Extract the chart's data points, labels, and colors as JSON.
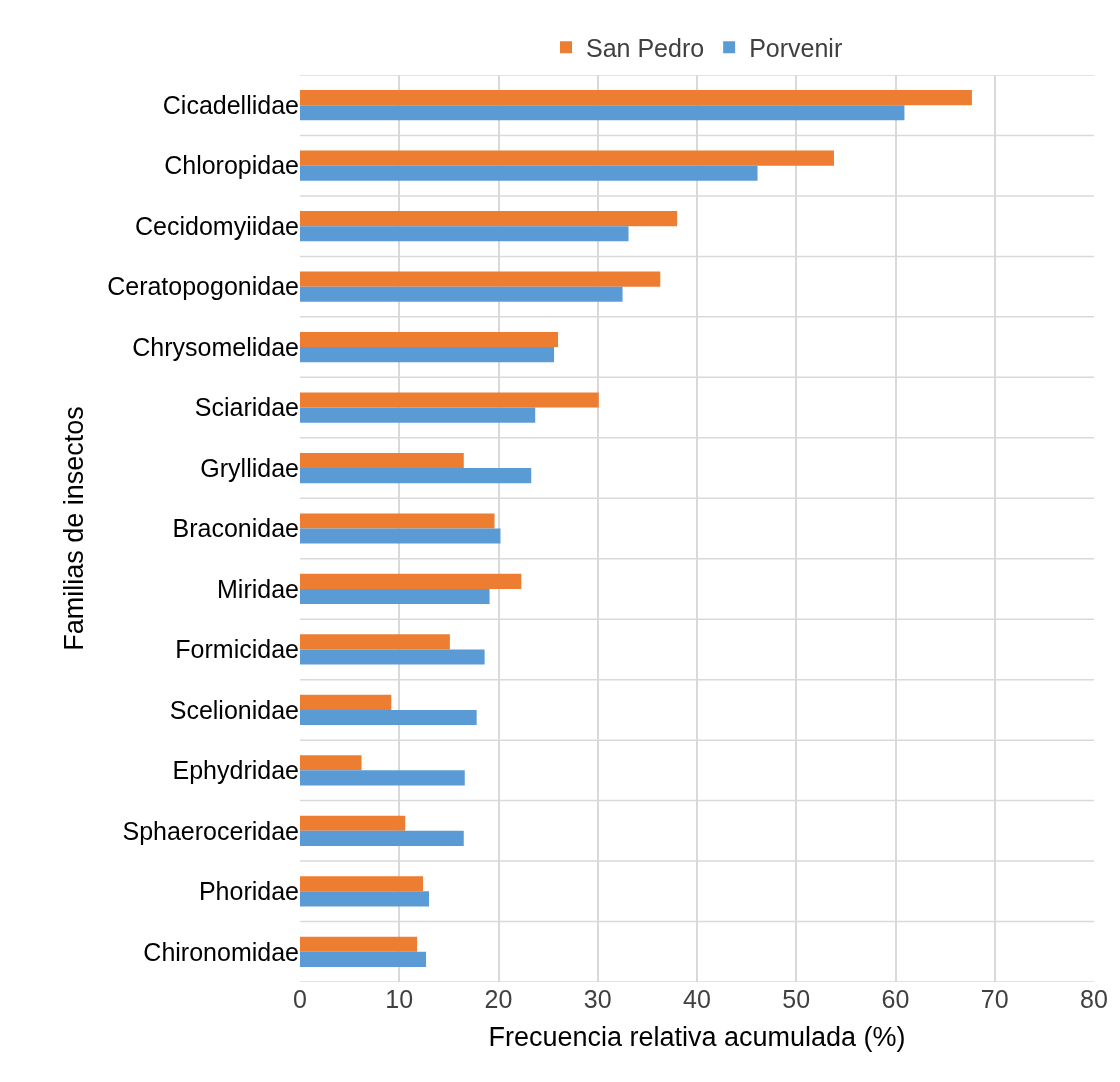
{
  "chart_data": {
    "type": "bar",
    "orientation": "horizontal",
    "xlabel": "Frecuencia relativa acumulada (%)",
    "ylabel": "Familias de insectos",
    "categories": [
      "Cicadellidae",
      "Chloropidae",
      "Cecidomyiidae",
      "Ceratopogonidae",
      "Chrysomelidae",
      "Sciaridae",
      "Gryllidae",
      "Braconidae",
      "Miridae",
      "Formicidae",
      "Scelionidae",
      "Ephydridae",
      "Sphaeroceridae",
      "Phoridae",
      "Chironomidae"
    ],
    "series": [
      {
        "name": "San Pedro",
        "color": "#ed7d31",
        "values": [
          67.7,
          53.8,
          38.0,
          36.3,
          26.0,
          30.1,
          16.5,
          19.6,
          22.3,
          15.1,
          9.2,
          6.2,
          10.6,
          12.4,
          11.8
        ]
      },
      {
        "name": "Porvenir",
        "color": "#5b9bd5",
        "values": [
          60.9,
          46.1,
          33.1,
          32.5,
          25.6,
          23.7,
          23.3,
          20.2,
          19.1,
          18.6,
          17.8,
          16.6,
          16.5,
          13.0,
          12.7
        ]
      }
    ],
    "xlim": [
      0,
      80
    ],
    "xticks": [
      0,
      10,
      20,
      30,
      40,
      50,
      60,
      70,
      80
    ],
    "grid": true,
    "legend": "top"
  }
}
